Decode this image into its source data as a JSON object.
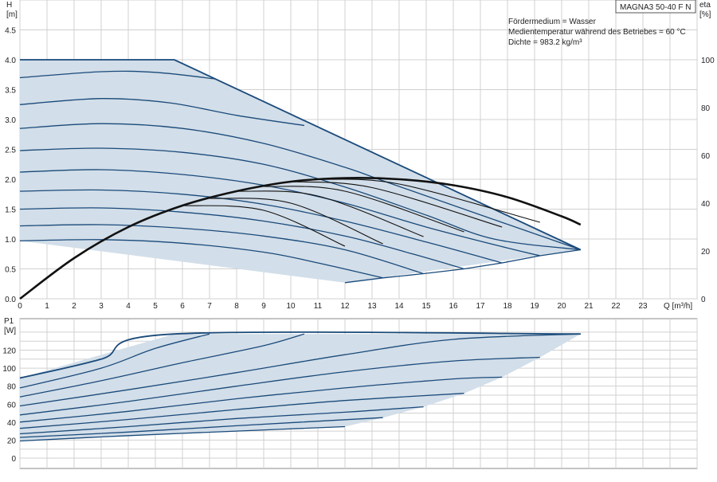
{
  "model_label": "MAGNA3 50-40 F N",
  "medium_info": [
    "Fördermedium = Wasser",
    "Medientemperatur während des Betriebes = 60 °C",
    "Dichte = 983.2 kg/m³"
  ],
  "colors": {
    "curve": "#1a4a7a",
    "fill": "#d2dee9",
    "grid": "#d0d0d0",
    "efficiency": "#111111"
  },
  "chart_data": [
    {
      "type": "line",
      "name": "head-curves",
      "ylabel": "H",
      "yunit": "[m]",
      "xlabel": "Q [m³/h]",
      "xlim": [
        0,
        25
      ],
      "ylim": [
        0,
        5
      ],
      "x_ticks": [
        0,
        1,
        2,
        3,
        4,
        5,
        6,
        7,
        8,
        9,
        10,
        11,
        12,
        13,
        14,
        15,
        16,
        17,
        18,
        19,
        20,
        21,
        22,
        23
      ],
      "y_ticks": [
        0.0,
        0.5,
        1.0,
        1.5,
        2.0,
        2.5,
        3.0,
        3.5,
        4.0,
        4.5
      ],
      "y2label": "eta",
      "y2unit": "[%]",
      "y2lim": [
        0,
        125
      ],
      "y2_ticks": [
        0,
        20,
        40,
        60,
        80,
        100
      ],
      "envelope": [
        [
          0,
          4.0
        ],
        [
          5.7,
          4.0
        ],
        [
          20.7,
          0.82
        ],
        [
          12.0,
          0.27
        ],
        [
          0,
          0.97
        ]
      ],
      "series": [
        {
          "points": [
            [
              0,
              4.0
            ],
            [
              5.7,
              4.0
            ],
            [
              20.7,
              0.82
            ]
          ]
        },
        {
          "points": [
            [
              0,
              3.7
            ],
            [
              3,
              3.8
            ],
            [
              5,
              3.79
            ],
            [
              7.2,
              3.68
            ]
          ]
        },
        {
          "points": [
            [
              0,
              3.25
            ],
            [
              3,
              3.35
            ],
            [
              5.5,
              3.28
            ],
            [
              8,
              3.07
            ],
            [
              10.5,
              2.9
            ]
          ]
        },
        {
          "points": [
            [
              0,
              2.85
            ],
            [
              3,
              2.93
            ],
            [
              6,
              2.85
            ],
            [
              9,
              2.6
            ],
            [
              12,
              2.2
            ],
            [
              14,
              1.88
            ],
            [
              20.7,
              0.82
            ]
          ]
        },
        {
          "points": [
            [
              0,
              2.48
            ],
            [
              3,
              2.52
            ],
            [
              6,
              2.45
            ],
            [
              9,
              2.25
            ],
            [
              12,
              1.87
            ],
            [
              15,
              1.4
            ],
            [
              17.5,
              1.0
            ],
            [
              20.7,
              0.82
            ]
          ]
        },
        {
          "points": [
            [
              0,
              2.12
            ],
            [
              3,
              2.16
            ],
            [
              6,
              2.08
            ],
            [
              9,
              1.9
            ],
            [
              12,
              1.6
            ],
            [
              15,
              1.2
            ],
            [
              18,
              0.85
            ],
            [
              19.2,
              0.72
            ]
          ]
        },
        {
          "points": [
            [
              0,
              1.8
            ],
            [
              3,
              1.82
            ],
            [
              6,
              1.75
            ],
            [
              9,
              1.58
            ],
            [
              12,
              1.3
            ],
            [
              15,
              0.95
            ],
            [
              17.8,
              0.6
            ]
          ]
        },
        {
          "points": [
            [
              0,
              1.5
            ],
            [
              3,
              1.52
            ],
            [
              6,
              1.45
            ],
            [
              9,
              1.3
            ],
            [
              12,
              1.05
            ],
            [
              14.5,
              0.75
            ],
            [
              16.4,
              0.5
            ]
          ]
        },
        {
          "points": [
            [
              0,
              1.22
            ],
            [
              3,
              1.24
            ],
            [
              6,
              1.18
            ],
            [
              9,
              1.05
            ],
            [
              12,
              0.82
            ],
            [
              14.9,
              0.42
            ]
          ]
        },
        {
          "points": [
            [
              0,
              0.97
            ],
            [
              3,
              0.99
            ],
            [
              6,
              0.93
            ],
            [
              9,
              0.78
            ],
            [
              11,
              0.6
            ],
            [
              13.4,
              0.35
            ]
          ]
        },
        {
          "points": [
            [
              12.0,
              0.27
            ],
            [
              13.4,
              0.35
            ],
            [
              14.9,
              0.42
            ],
            [
              16.4,
              0.5
            ],
            [
              17.8,
              0.6
            ],
            [
              19.2,
              0.72
            ],
            [
              20.7,
              0.82
            ]
          ]
        }
      ],
      "efficiency_curve": [
        [
          0,
          0
        ],
        [
          2,
          17
        ],
        [
          4,
          30
        ],
        [
          6,
          39
        ],
        [
          8,
          45
        ],
        [
          10,
          49
        ],
        [
          12,
          50.5
        ],
        [
          14,
          50
        ],
        [
          16,
          47.5
        ],
        [
          18,
          42.5
        ],
        [
          20,
          34.5
        ],
        [
          20.7,
          31
        ]
      ],
      "efficiency_branches": [
        {
          "points": [
            [
              6,
              39
            ],
            [
              9,
              37
            ],
            [
              12,
              22
            ]
          ]
        },
        {
          "points": [
            [
              7,
              42
            ],
            [
              10,
              40
            ],
            [
              13.4,
              23
            ]
          ]
        },
        {
          "points": [
            [
              8,
              45
            ],
            [
              11,
              43
            ],
            [
              14.9,
              26
            ]
          ]
        },
        {
          "points": [
            [
              9,
              47
            ],
            [
              12,
              45
            ],
            [
              16.4,
              28
            ]
          ]
        },
        {
          "points": [
            [
              10,
              49
            ],
            [
              13,
              46.5
            ],
            [
              17.8,
              30
            ]
          ]
        },
        {
          "points": [
            [
              11,
              50
            ],
            [
              14,
              48
            ],
            [
              19.2,
              32
            ]
          ]
        }
      ]
    },
    {
      "type": "line",
      "name": "power-curves",
      "ylabel": "P1",
      "yunit": "[W]",
      "xlim": [
        0,
        25
      ],
      "ylim": [
        0,
        155
      ],
      "y_ticks": [
        0,
        20,
        40,
        60,
        80,
        100,
        120
      ],
      "envelope": [
        [
          0,
          89
        ],
        [
          5.7,
          138
        ],
        [
          20.7,
          138
        ],
        [
          19.2,
          112
        ],
        [
          17.8,
          90
        ],
        [
          16.4,
          72
        ],
        [
          14.9,
          57
        ],
        [
          13.4,
          45
        ],
        [
          12.0,
          35
        ],
        [
          0,
          19
        ]
      ],
      "series": [
        {
          "points": [
            [
              0,
              89
            ],
            [
              3,
              110
            ],
            [
              5.7,
              138
            ],
            [
              20.7,
              138
            ]
          ]
        },
        {
          "points": [
            [
              0,
              78
            ],
            [
              3,
              100
            ],
            [
              5,
              122
            ],
            [
              7,
              138
            ]
          ]
        },
        {
          "points": [
            [
              0,
              68
            ],
            [
              3,
              86
            ],
            [
              6,
              106
            ],
            [
              9,
              125
            ],
            [
              10.5,
              138
            ]
          ]
        },
        {
          "points": [
            [
              0,
              58
            ],
            [
              4,
              76
            ],
            [
              8,
              95
            ],
            [
              12,
              115
            ],
            [
              16,
              132
            ],
            [
              20.7,
              138
            ]
          ]
        },
        {
          "points": [
            [
              0,
              48
            ],
            [
              4,
              63
            ],
            [
              8,
              80
            ],
            [
              12,
              96
            ],
            [
              16,
              108
            ],
            [
              19.2,
              112
            ]
          ]
        },
        {
          "points": [
            [
              0,
              40
            ],
            [
              4,
              52
            ],
            [
              8,
              66
            ],
            [
              12,
              78
            ],
            [
              16,
              88
            ],
            [
              17.8,
              90
            ]
          ]
        },
        {
          "points": [
            [
              0,
              33
            ],
            [
              4,
              43
            ],
            [
              8,
              54
            ],
            [
              12,
              64
            ],
            [
              16.4,
              72
            ]
          ]
        },
        {
          "points": [
            [
              0,
              27
            ],
            [
              4,
              35
            ],
            [
              8,
              44
            ],
            [
              12,
              51
            ],
            [
              14.9,
              57
            ]
          ]
        },
        {
          "points": [
            [
              0,
              23
            ],
            [
              4,
              29
            ],
            [
              8,
              36
            ],
            [
              13.4,
              45
            ]
          ]
        },
        {
          "points": [
            [
              0,
              19
            ],
            [
              4,
              25
            ],
            [
              8,
              30
            ],
            [
              12,
              35
            ]
          ]
        }
      ]
    }
  ]
}
